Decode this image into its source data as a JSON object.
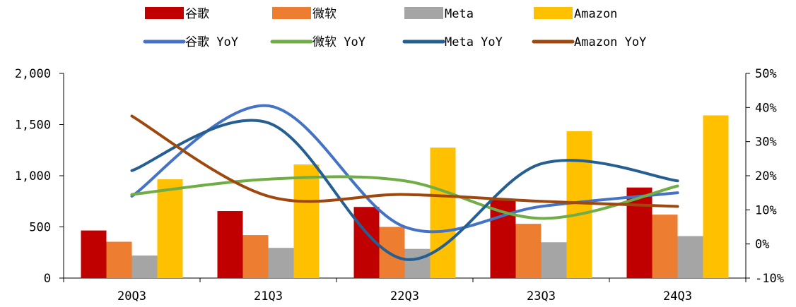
{
  "chart_data": {
    "type": "bar",
    "categories": [
      "20Q3",
      "21Q3",
      "22Q3",
      "23Q3",
      "24Q3"
    ],
    "series": [
      {
        "name": "谷歌",
        "type": "bar",
        "axis": "left",
        "color": "#C00000",
        "values": [
          465,
          655,
          695,
          765,
          885
        ]
      },
      {
        "name": "微软",
        "type": "bar",
        "axis": "left",
        "color": "#ED7D31",
        "values": [
          355,
          420,
          500,
          530,
          620
        ]
      },
      {
        "name": "Meta",
        "type": "bar",
        "axis": "left",
        "color": "#A5A5A5",
        "values": [
          220,
          295,
          285,
          350,
          410
        ]
      },
      {
        "name": "Amazon",
        "type": "bar",
        "axis": "left",
        "color": "#FFC000",
        "values": [
          965,
          1110,
          1275,
          1435,
          1590
        ]
      },
      {
        "name": "谷歌 YoY",
        "type": "line",
        "axis": "right",
        "color": "#4472C4",
        "values": [
          14.0,
          40.5,
          5.0,
          11.0,
          15.0
        ]
      },
      {
        "name": "微软 YoY",
        "type": "line",
        "axis": "right",
        "color": "#70AD47",
        "values": [
          14.5,
          19.0,
          18.5,
          7.5,
          17.0
        ]
      },
      {
        "name": "Meta YoY",
        "type": "line",
        "axis": "right",
        "color": "#255E91",
        "values": [
          21.5,
          35.5,
          -4.5,
          23.5,
          18.5
        ]
      },
      {
        "name": "Amazon YoY",
        "type": "line",
        "axis": "right",
        "color": "#9E480E",
        "values": [
          37.5,
          14.0,
          14.5,
          12.5,
          11.0
        ]
      }
    ],
    "ylim_left": [
      0,
      2000
    ],
    "yticks_left": [
      "0",
      "500",
      "1,000",
      "1,500",
      "2,000"
    ],
    "ylim_right": [
      -10,
      50
    ],
    "yticks_right": [
      "-10%",
      "0%",
      "10%",
      "20%",
      "30%",
      "40%",
      "50%"
    ],
    "grid": false,
    "legend_position": "top"
  }
}
